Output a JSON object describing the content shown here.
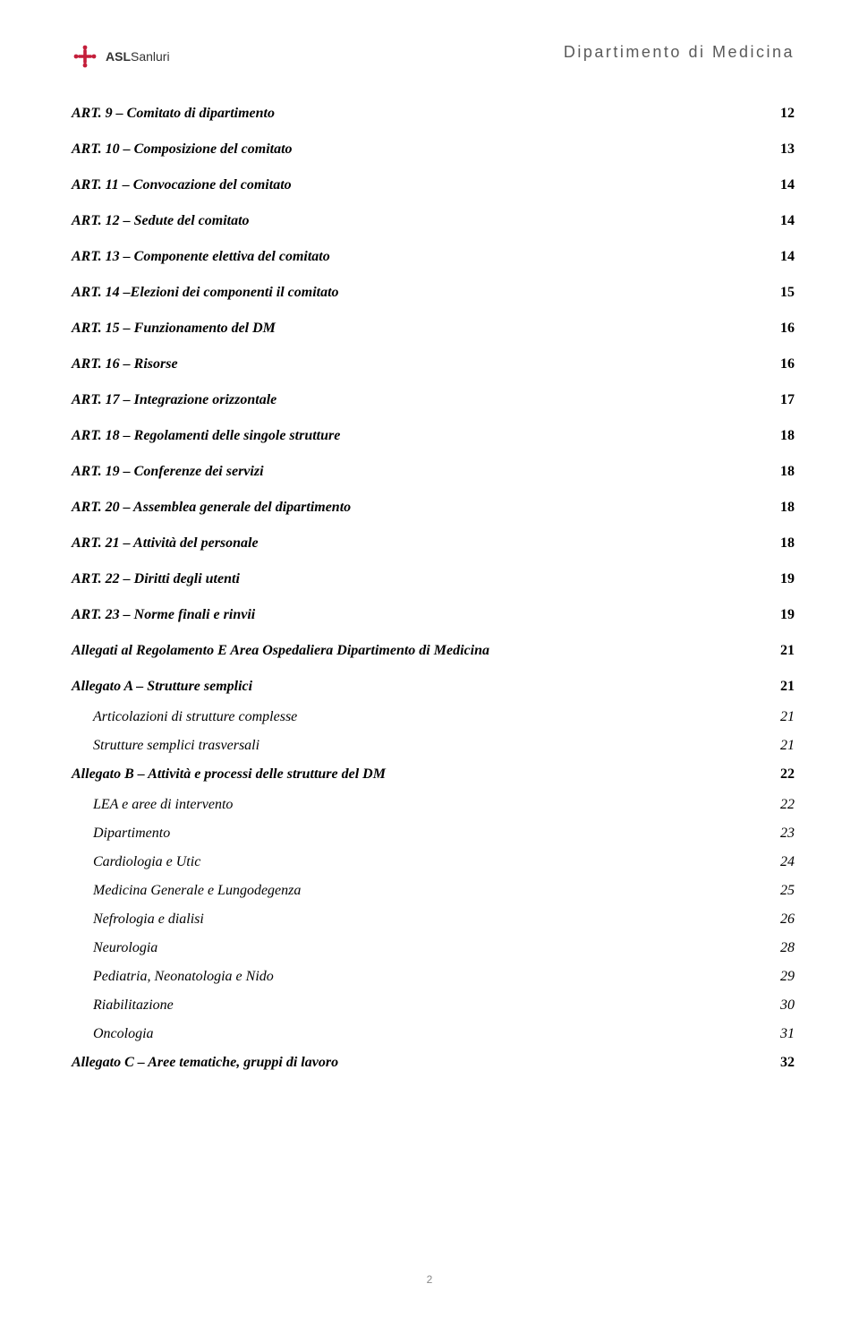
{
  "header": {
    "brand_bold": "ASL",
    "brand_light": "Sanluri",
    "dept_title": "Dipartimento di Medicina",
    "logo_color": "#c41e3a"
  },
  "toc": [
    {
      "level": "main",
      "title": "ART. 9 – Comitato di dipartimento",
      "page": "12"
    },
    {
      "level": "main",
      "title": "ART. 10 – Composizione del comitato",
      "page": "13"
    },
    {
      "level": "main",
      "title": "ART. 11 – Convocazione del comitato",
      "page": "14"
    },
    {
      "level": "main",
      "title": "ART. 12 – Sedute del comitato",
      "page": "14"
    },
    {
      "level": "main",
      "title": "ART. 13 – Componente elettiva del comitato",
      "page": "14"
    },
    {
      "level": "main",
      "title": "ART. 14 –Elezioni dei componenti il comitato",
      "page": "15"
    },
    {
      "level": "main",
      "title": "ART. 15 – Funzionamento del DM",
      "page": "16"
    },
    {
      "level": "main",
      "title": "ART. 16 – Risorse",
      "page": "16"
    },
    {
      "level": "main",
      "title": "ART. 17 – Integrazione orizzontale",
      "page": "17"
    },
    {
      "level": "main",
      "title": "ART. 18 – Regolamenti delle singole strutture",
      "page": "18"
    },
    {
      "level": "main",
      "title": "ART. 19 – Conferenze dei servizi",
      "page": "18"
    },
    {
      "level": "main",
      "title": "ART. 20 – Assemblea generale del dipartimento",
      "page": "18"
    },
    {
      "level": "main",
      "title": "ART. 21 – Attività del personale",
      "page": "18"
    },
    {
      "level": "main",
      "title": "ART. 22 – Diritti degli utenti",
      "page": "19"
    },
    {
      "level": "main",
      "title": "ART. 23 – Norme finali e rinvii",
      "page": "19"
    },
    {
      "level": "main",
      "title": "Allegati al Regolamento E Area Ospedaliera Dipartimento di Medicina",
      "page": "21"
    },
    {
      "level": "sub",
      "title": "Allegato A – Strutture semplici",
      "page": "21"
    },
    {
      "level": "subsub",
      "title": "Articolazioni di strutture complesse",
      "page": "21"
    },
    {
      "level": "subsub",
      "title": "Strutture semplici trasversali",
      "page": "21"
    },
    {
      "level": "sub",
      "title": "Allegato B – Attività e processi delle strutture del DM",
      "page": "22"
    },
    {
      "level": "subsub",
      "title": "LEA e aree di intervento",
      "page": "22"
    },
    {
      "level": "subsub",
      "title": "Dipartimento",
      "page": "23"
    },
    {
      "level": "subsub",
      "title": "Cardiologia e Utic",
      "page": "24"
    },
    {
      "level": "subsub",
      "title": "Medicina Generale e Lungodegenza",
      "page": "25"
    },
    {
      "level": "subsub",
      "title": "Nefrologia e dialisi",
      "page": "26"
    },
    {
      "level": "subsub",
      "title": "Neurologia",
      "page": "28"
    },
    {
      "level": "subsub",
      "title": "Pediatria, Neonatologia e Nido",
      "page": "29"
    },
    {
      "level": "subsub",
      "title": "Riabilitazione",
      "page": "30"
    },
    {
      "level": "subsub",
      "title": "Oncologia",
      "page": "31"
    },
    {
      "level": "sub",
      "title": "Allegato C – Aree tematiche, gruppi di lavoro",
      "page": "32"
    }
  ],
  "footer": {
    "page_number": "2"
  }
}
